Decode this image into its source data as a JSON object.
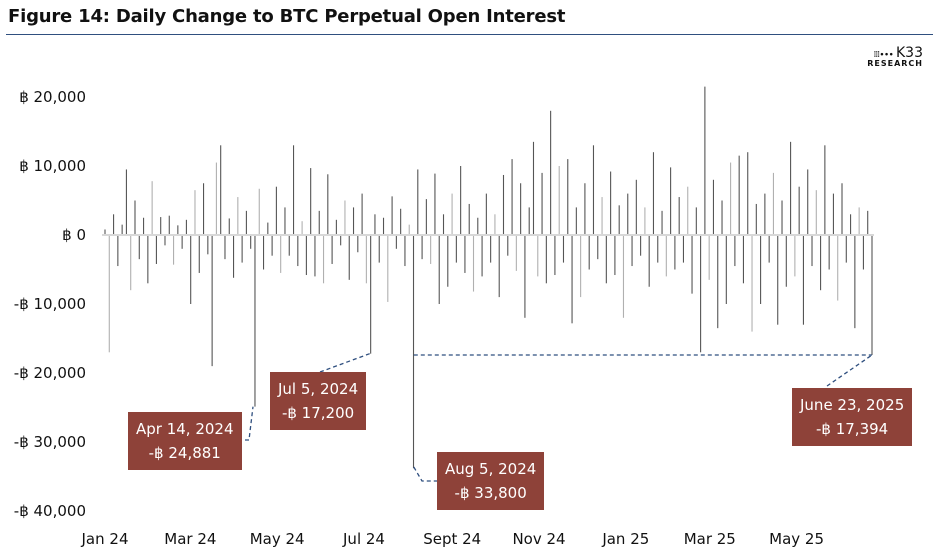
{
  "title": "Figure 14: Daily Change to BTC Perpetual Open Interest",
  "logo": {
    "name": "K33",
    "sub": "RESEARCH",
    "dots": "⁞⁞⁞∙∙∙"
  },
  "colors": {
    "bar_dark": "#555555",
    "bar_light": "#b0b0b0",
    "annotation_box": "#8e4239",
    "annotation_line": "#2f4f7f",
    "title_rule": "#2f4f7f"
  },
  "chart_data": {
    "type": "bar",
    "title": "Figure 14: Daily Change to BTC Perpetual Open Interest",
    "xlabel": "",
    "ylabel": "",
    "x_range": [
      "2024-01-01",
      "2025-06-23"
    ],
    "ylim": [
      -40000,
      20000
    ],
    "grid": false,
    "y_ticks": [
      {
        "value": 20000,
        "label": "฿ 20,000"
      },
      {
        "value": 10000,
        "label": "฿ 10,000"
      },
      {
        "value": 0,
        "label": "฿ 0"
      },
      {
        "value": -10000,
        "label": "-฿ 10,000"
      },
      {
        "value": -20000,
        "label": "-฿ 20,000"
      },
      {
        "value": -30000,
        "label": "-฿ 30,000"
      },
      {
        "value": -40000,
        "label": "-฿ 40,000"
      }
    ],
    "x_ticks": [
      {
        "date": "2024-01-01",
        "label": "Jan 24"
      },
      {
        "date": "2024-03-01",
        "label": "Mar 24"
      },
      {
        "date": "2024-05-01",
        "label": "May 24"
      },
      {
        "date": "2024-07-01",
        "label": "Jul 24"
      },
      {
        "date": "2024-09-01",
        "label": "Sept 24"
      },
      {
        "date": "2024-11-01",
        "label": "Nov 24"
      },
      {
        "date": "2025-01-01",
        "label": "Jan 25"
      },
      {
        "date": "2025-03-01",
        "label": "Mar 25"
      },
      {
        "date": "2025-05-01",
        "label": "May 25"
      }
    ],
    "values": [
      800,
      -17000,
      3000,
      -4500,
      1500,
      9500,
      -8000,
      5000,
      -3500,
      2500,
      -7000,
      7800,
      -4200,
      2600,
      -1500,
      2800,
      -4300,
      1400,
      -2000,
      2200,
      -10000,
      6500,
      -5500,
      7500,
      -2800,
      -19000,
      10500,
      13000,
      -3500,
      2400,
      -6200,
      5500,
      -4000,
      3500,
      -2000,
      -24881,
      6700,
      -5000,
      1800,
      -3000,
      7000,
      -5500,
      4000,
      -3000,
      13000,
      -4500,
      2000,
      -5800,
      9700,
      -6000,
      3500,
      -7000,
      8800,
      -4200,
      2200,
      -1500,
      5000,
      -6500,
      4000,
      -2500,
      6000,
      -7000,
      -17200,
      3000,
      -4000,
      2500,
      -9700,
      5600,
      -2000,
      3800,
      -4500,
      1500,
      -33800,
      9500,
      -3500,
      5200,
      -4200,
      8900,
      -10000,
      3000,
      -7500,
      6000,
      -4000,
      10000,
      -5500,
      4500,
      -8200,
      2500,
      -6000,
      6000,
      -4000,
      3000,
      -9000,
      8700,
      -3000,
      11000,
      -5200,
      7500,
      -12000,
      4000,
      13500,
      -6000,
      9000,
      -7000,
      18000,
      -5800,
      10000,
      -4000,
      11000,
      -12800,
      4000,
      -9000,
      7500,
      -5000,
      13000,
      -3500,
      5500,
      -7000,
      9200,
      -5800,
      4300,
      -12000,
      6000,
      -4500,
      8000,
      -3000,
      4000,
      -7500,
      12000,
      -4000,
      3500,
      -6000,
      9800,
      -5000,
      5500,
      -4000,
      7000,
      -8500,
      4000,
      -17000,
      21500,
      -6500,
      8000,
      -13500,
      5000,
      -10000,
      10500,
      -4500,
      11500,
      -7000,
      12000,
      -14000,
      4500,
      -10000,
      6000,
      -4000,
      9000,
      -13000,
      5000,
      -7500,
      13500,
      -6000,
      7000,
      -13000,
      9500,
      -4500,
      6500,
      -8000,
      13000,
      -5000,
      6000,
      -9500,
      7500,
      -4000,
      3000,
      -13500,
      4000,
      -5000,
      3500,
      -17394
    ],
    "annotations": [
      {
        "date": "2024-04-14",
        "label": "Apr 14, 2024",
        "value": -24881,
        "value_label": "-฿ 24,881"
      },
      {
        "date": "2024-07-05",
        "label": "Jul 5, 2024",
        "value": -17200,
        "value_label": "-฿ 17,200"
      },
      {
        "date": "2024-08-05",
        "label": "Aug 5, 2024",
        "value": -33800,
        "value_label": "-฿ 33,800"
      },
      {
        "date": "2025-06-23",
        "label": "June 23, 2025",
        "value": -17394,
        "value_label": "-฿ 17,394"
      }
    ]
  }
}
